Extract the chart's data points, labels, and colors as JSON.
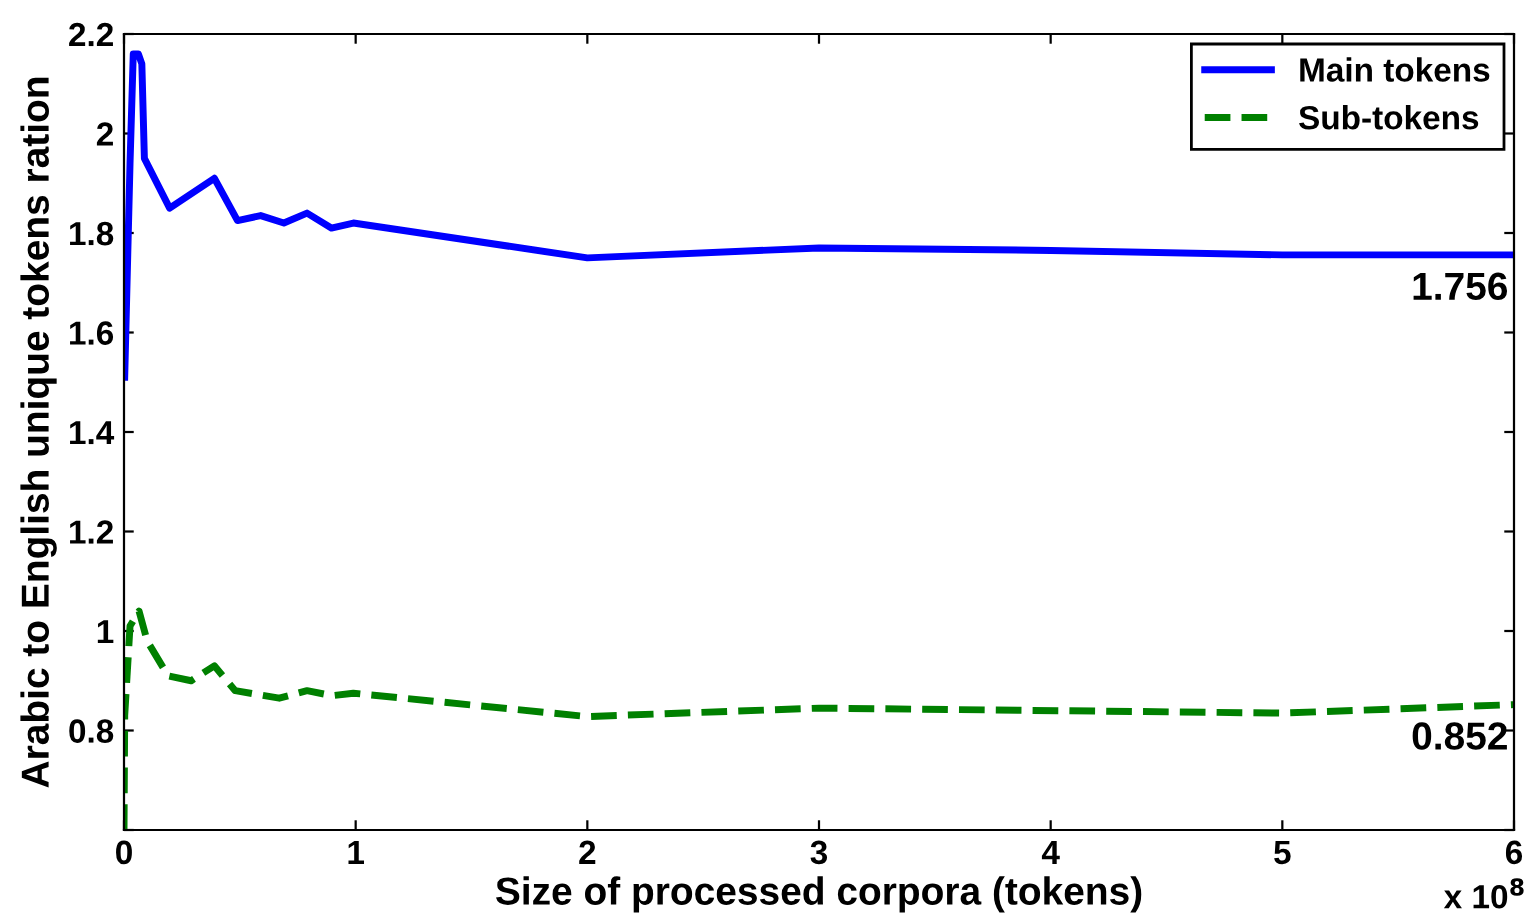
{
  "chart_data": {
    "type": "line",
    "xlabel": "Size of processed corpora (tokens)",
    "ylabel": "Arabic to English unique tokens ration",
    "series": [
      {
        "name": "Main tokens",
        "color": "#0000ff",
        "line_style": "solid",
        "x": [
          0.003,
          0.026,
          0.04,
          0.062,
          0.077,
          0.088,
          0.197,
          0.39,
          0.49,
          0.59,
          0.69,
          0.79,
          0.895,
          0.99,
          2,
          3,
          4,
          5,
          6
        ],
        "values": [
          1.51,
          1.94,
          2.16,
          2.16,
          2.14,
          1.95,
          1.85,
          1.91,
          1.825,
          1.835,
          1.82,
          1.84,
          1.81,
          1.82,
          1.75,
          1.77,
          1.765,
          1.756,
          1.756
        ]
      },
      {
        "name": "Sub-tokens",
        "color": "#008000",
        "line_style": "dashed",
        "x": [
          0,
          0.003,
          0.026,
          0.065,
          0.1,
          0.19,
          0.29,
          0.39,
          0.48,
          0.67,
          0.79,
          0.9,
          0.99,
          2,
          3,
          5,
          6
        ],
        "values": [
          0.6,
          0.83,
          1.01,
          1.04,
          0.98,
          0.91,
          0.9,
          0.93,
          0.88,
          0.865,
          0.88,
          0.87,
          0.875,
          0.828,
          0.845,
          0.835,
          0.852
        ]
      }
    ],
    "annotations": [
      {
        "text": "1.756",
        "x": 6,
        "y": 1.756
      },
      {
        "text": "0.852",
        "x": 6,
        "y": 0.852
      },
      "x 10$^{8}$"
    ],
    "xlim": [
      0,
      6
    ],
    "xticks": [
      0,
      1,
      2,
      3,
      4,
      5,
      6
    ],
    "ylim": [
      0.6,
      2.2
    ],
    "yticks": [
      {
        "value": 0.6,
        "label": null
      },
      0.8,
      1,
      1.2,
      1.4,
      1.6,
      1.8,
      2,
      2.2
    ],
    "grid": false,
    "legend": "top right",
    "marker": "none"
  }
}
